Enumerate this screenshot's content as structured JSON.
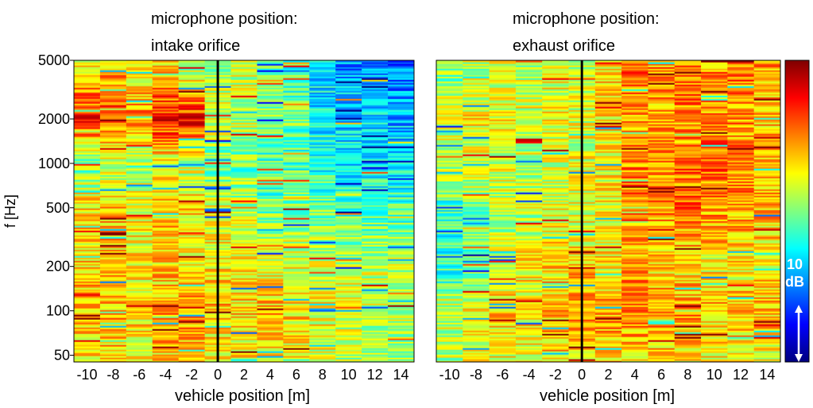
{
  "chart_data": {
    "type": "heatmap",
    "ylabel": "f [Hz]",
    "y_scale": "log",
    "ylim": [
      45,
      5000
    ],
    "yticks": [
      50,
      100,
      200,
      500,
      1000,
      2000,
      5000
    ],
    "xlim": [
      -11,
      15
    ],
    "xticks": [
      -10,
      -8,
      -6,
      -4,
      -2,
      0,
      2,
      4,
      6,
      8,
      10,
      12,
      14
    ],
    "vehicle_positions": [
      -10,
      -8,
      -6,
      -4,
      -2,
      0,
      2,
      4,
      6,
      8,
      10,
      12,
      14
    ],
    "marker_line_x": 0,
    "panels": [
      {
        "title_line1": "microphone position:",
        "title_line2": "intake orifice",
        "xlabel": "vehicle position [m]",
        "level_dB": {
          "frequency_bands_hz": [
            5000,
            2000,
            1000,
            500,
            200,
            100,
            50
          ],
          "rows_by_band": [
            [
              2,
              3,
              2,
              2,
              -2,
              0,
              1,
              -2,
              -3,
              -6,
              -8,
              -8,
              -9
            ],
            [
              8,
              7,
              5,
              9,
              9,
              1,
              0,
              -1,
              -2,
              -5,
              -6,
              -6,
              -7
            ],
            [
              -2,
              0,
              -1,
              1,
              0,
              -2,
              -2,
              -3,
              -3,
              -4,
              -5,
              -5,
              -6
            ],
            [
              3,
              4,
              2,
              4,
              3,
              1,
              0,
              -2,
              -1,
              -2,
              -3,
              -3,
              -3
            ],
            [
              3,
              3,
              2,
              3,
              2,
              2,
              3,
              2,
              1,
              1,
              1,
              0,
              0
            ],
            [
              4,
              4,
              3,
              5,
              5,
              4,
              3,
              4,
              3,
              2,
              1,
              0,
              0
            ],
            [
              3,
              3,
              2,
              3,
              3,
              2,
              2,
              3,
              2,
              1,
              0,
              0,
              -1
            ]
          ]
        }
      },
      {
        "title_line1": "microphone position:",
        "title_line2": "exhaust orifice",
        "xlabel": "vehicle position [m]",
        "level_dB": {
          "frequency_bands_hz": [
            5000,
            2000,
            1000,
            500,
            200,
            100,
            50
          ],
          "rows_by_band": [
            [
              -2,
              0,
              1,
              0,
              1,
              0,
              3,
              6,
              5,
              6,
              5,
              6,
              5
            ],
            [
              1,
              2,
              2,
              1,
              2,
              1,
              3,
              5,
              4,
              5,
              5,
              5,
              4
            ],
            [
              0,
              1,
              1,
              0,
              1,
              1,
              2,
              5,
              5,
              6,
              6,
              5,
              4
            ],
            [
              -3,
              -2,
              0,
              0,
              1,
              1,
              2,
              6,
              5,
              6,
              5,
              5,
              4
            ],
            [
              -4,
              -2,
              1,
              2,
              3,
              3,
              2,
              4,
              3,
              3,
              2,
              2,
              2
            ],
            [
              1,
              2,
              3,
              3,
              4,
              6,
              5,
              6,
              5,
              5,
              4,
              4,
              4
            ],
            [
              0,
              1,
              2,
              2,
              3,
              3,
              3,
              3,
              3,
              3,
              2,
              2,
              2
            ]
          ]
        }
      }
    ],
    "colorbar": {
      "scale_label_value": "10",
      "scale_label_unit": "dB",
      "colormap": "jet"
    }
  },
  "colors": {
    "marker_line": "#000000",
    "colorbar_annotation": "#ffffff"
  }
}
